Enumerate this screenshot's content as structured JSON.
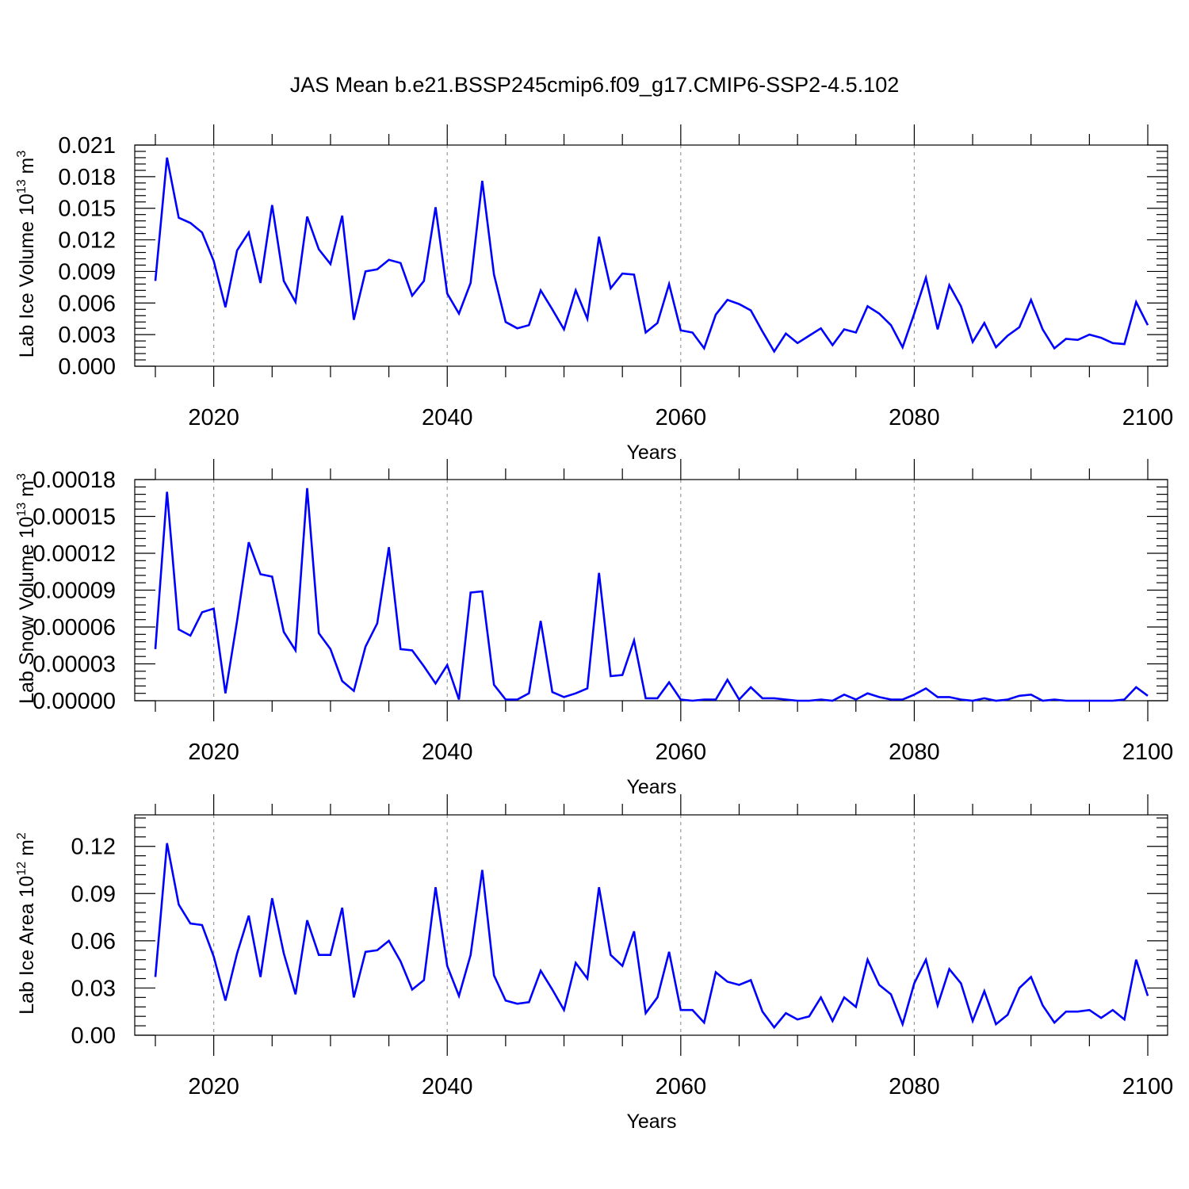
{
  "figure": {
    "title": "JAS Mean b.e21.BSSP245cmip6.f09_g17.CMIP6-SSP2-4.5.102",
    "line_color": "#0000ff"
  },
  "chart_data": [
    {
      "type": "line",
      "ylabel": "Lab Ice Volume 10",
      "ylabel_exp": "13",
      "ylabel_unit": " m",
      "ylabel_unit_exp": "3",
      "xlabel": "Years",
      "xlim": [
        2015,
        2100
      ],
      "ylim": [
        0,
        0.021
      ],
      "x_ticks": [
        2020,
        2040,
        2060,
        2080,
        2100
      ],
      "y_ticks": [
        "0.000",
        "0.003",
        "0.006",
        "0.009",
        "0.012",
        "0.015",
        "0.018",
        "0.021"
      ],
      "grid": "dashed vertical at major x ticks",
      "x": [
        2015,
        2016,
        2017,
        2018,
        2019,
        2020,
        2021,
        2022,
        2023,
        2024,
        2025,
        2026,
        2027,
        2028,
        2029,
        2030,
        2031,
        2032,
        2033,
        2034,
        2035,
        2036,
        2037,
        2038,
        2039,
        2040,
        2041,
        2042,
        2043,
        2044,
        2045,
        2046,
        2047,
        2048,
        2049,
        2050,
        2051,
        2052,
        2053,
        2054,
        2055,
        2056,
        2057,
        2058,
        2059,
        2060,
        2061,
        2062,
        2063,
        2064,
        2065,
        2066,
        2067,
        2068,
        2069,
        2070,
        2071,
        2072,
        2073,
        2074,
        2075,
        2076,
        2077,
        2078,
        2079,
        2080,
        2081,
        2082,
        2083,
        2084,
        2085,
        2086,
        2087,
        2088,
        2089,
        2090,
        2091,
        2092,
        2093,
        2094,
        2095,
        2096,
        2097,
        2098,
        2099,
        2100
      ],
      "series": [
        {
          "values": [
            0.0081,
            0.0198,
            0.0141,
            0.0136,
            0.0127,
            0.01,
            0.0056,
            0.011,
            0.0127,
            0.0079,
            0.0153,
            0.0081,
            0.0061,
            0.0142,
            0.0111,
            0.0097,
            0.0143,
            0.0044,
            0.009,
            0.0092,
            0.0101,
            0.0098,
            0.0067,
            0.0081,
            0.0151,
            0.0069,
            0.005,
            0.0079,
            0.0176,
            0.0087,
            0.0042,
            0.0036,
            0.0039,
            0.0072,
            0.0054,
            0.0035,
            0.0072,
            0.0045,
            0.0123,
            0.0074,
            0.0088,
            0.0087,
            0.0032,
            0.0041,
            0.0078,
            0.0034,
            0.0032,
            0.0017,
            0.0049,
            0.0063,
            0.0059,
            0.0053,
            0.0033,
            0.0014,
            0.0031,
            0.0022,
            0.0029,
            0.0036,
            0.002,
            0.0035,
            0.0032,
            0.0057,
            0.005,
            0.0039,
            0.0018,
            0.005,
            0.0084,
            0.0035,
            0.0077,
            0.0057,
            0.0023,
            0.0041,
            0.0018,
            0.0029,
            0.0037,
            0.0063,
            0.0035,
            0.0017,
            0.0026,
            0.0025,
            0.003,
            0.0027,
            0.0022,
            0.0021,
            0.0061,
            0.0039
          ]
        }
      ]
    },
    {
      "type": "line",
      "ylabel": "Lab Snow Volume 10",
      "ylabel_exp": "13",
      "ylabel_unit": " m",
      "ylabel_unit_exp": "3",
      "xlabel": "Years",
      "xlim": [
        2015,
        2100
      ],
      "ylim": [
        0,
        0.00018
      ],
      "x_ticks": [
        2020,
        2040,
        2060,
        2080,
        2100
      ],
      "y_ticks": [
        "0.00000",
        "0.00003",
        "0.00006",
        "0.00009",
        "0.00012",
        "0.00015",
        "0.00018"
      ],
      "grid": "dashed vertical at major x ticks",
      "x": [
        2015,
        2016,
        2017,
        2018,
        2019,
        2020,
        2021,
        2022,
        2023,
        2024,
        2025,
        2026,
        2027,
        2028,
        2029,
        2030,
        2031,
        2032,
        2033,
        2034,
        2035,
        2036,
        2037,
        2038,
        2039,
        2040,
        2041,
        2042,
        2043,
        2044,
        2045,
        2046,
        2047,
        2048,
        2049,
        2050,
        2051,
        2052,
        2053,
        2054,
        2055,
        2056,
        2057,
        2058,
        2059,
        2060,
        2061,
        2062,
        2063,
        2064,
        2065,
        2066,
        2067,
        2068,
        2069,
        2070,
        2071,
        2072,
        2073,
        2074,
        2075,
        2076,
        2077,
        2078,
        2079,
        2080,
        2081,
        2082,
        2083,
        2084,
        2085,
        2086,
        2087,
        2088,
        2089,
        2090,
        2091,
        2092,
        2093,
        2094,
        2095,
        2096,
        2097,
        2098,
        2099,
        2100
      ],
      "series": [
        {
          "values": [
            4.2e-05,
            0.00017,
            5.8e-05,
            5.3e-05,
            7.2e-05,
            7.5e-05,
            6e-06,
            6.5e-05,
            0.000129,
            0.000103,
            0.000101,
            5.6e-05,
            4.1e-05,
            0.000173,
            5.5e-05,
            4.2e-05,
            1.6e-05,
            8e-06,
            4.4e-05,
            6.3e-05,
            0.000125,
            4.2e-05,
            4.1e-05,
            2.8e-05,
            1.4e-05,
            2.9e-05,
            1e-06,
            8.8e-05,
            8.9e-05,
            1.3e-05,
            1e-06,
            1e-06,
            6e-06,
            6.5e-05,
            7e-06,
            3e-06,
            6e-06,
            1e-05,
            0.000104,
            2e-05,
            2.1e-05,
            4.9e-05,
            2e-06,
            2e-06,
            1.5e-05,
            1e-06,
            0.0,
            1e-06,
            1e-06,
            1.7e-05,
            1e-06,
            1.1e-05,
            2e-06,
            2e-06,
            1e-06,
            0.0,
            0.0,
            1e-06,
            0.0,
            5e-06,
            1e-06,
            6e-06,
            3e-06,
            1e-06,
            1e-06,
            5e-06,
            1e-05,
            3e-06,
            3e-06,
            1e-06,
            0.0,
            2e-06,
            0.0,
            1e-06,
            4e-06,
            5e-06,
            0.0,
            1e-06,
            0.0,
            0.0,
            0.0,
            0.0,
            0.0,
            1e-06,
            1.1e-05,
            4e-06
          ]
        }
      ]
    },
    {
      "type": "line",
      "ylabel": "Lab Ice Area 10",
      "ylabel_exp": "12",
      "ylabel_unit": " m",
      "ylabel_unit_exp": "2",
      "xlabel": "Years",
      "xlim": [
        2015,
        2100
      ],
      "ylim": [
        0,
        0.14
      ],
      "x_ticks": [
        2020,
        2040,
        2060,
        2080,
        2100
      ],
      "y_ticks": [
        "0.00",
        "0.03",
        "0.06",
        "0.09",
        "0.12"
      ],
      "grid": "dashed vertical at major x ticks",
      "x": [
        2015,
        2016,
        2017,
        2018,
        2019,
        2020,
        2021,
        2022,
        2023,
        2024,
        2025,
        2026,
        2027,
        2028,
        2029,
        2030,
        2031,
        2032,
        2033,
        2034,
        2035,
        2036,
        2037,
        2038,
        2039,
        2040,
        2041,
        2042,
        2043,
        2044,
        2045,
        2046,
        2047,
        2048,
        2049,
        2050,
        2051,
        2052,
        2053,
        2054,
        2055,
        2056,
        2057,
        2058,
        2059,
        2060,
        2061,
        2062,
        2063,
        2064,
        2065,
        2066,
        2067,
        2068,
        2069,
        2070,
        2071,
        2072,
        2073,
        2074,
        2075,
        2076,
        2077,
        2078,
        2079,
        2080,
        2081,
        2082,
        2083,
        2084,
        2085,
        2086,
        2087,
        2088,
        2089,
        2090,
        2091,
        2092,
        2093,
        2094,
        2095,
        2096,
        2097,
        2098,
        2099,
        2100
      ],
      "series": [
        {
          "values": [
            0.037,
            0.122,
            0.083,
            0.071,
            0.07,
            0.05,
            0.022,
            0.052,
            0.076,
            0.037,
            0.087,
            0.052,
            0.026,
            0.073,
            0.051,
            0.051,
            0.081,
            0.024,
            0.053,
            0.054,
            0.06,
            0.047,
            0.029,
            0.035,
            0.094,
            0.044,
            0.025,
            0.051,
            0.105,
            0.038,
            0.022,
            0.02,
            0.021,
            0.041,
            0.029,
            0.016,
            0.046,
            0.036,
            0.094,
            0.051,
            0.044,
            0.066,
            0.014,
            0.024,
            0.053,
            0.016,
            0.016,
            0.008,
            0.04,
            0.034,
            0.032,
            0.035,
            0.015,
            0.005,
            0.014,
            0.01,
            0.012,
            0.024,
            0.009,
            0.024,
            0.018,
            0.048,
            0.032,
            0.026,
            0.007,
            0.033,
            0.048,
            0.019,
            0.042,
            0.033,
            0.009,
            0.028,
            0.007,
            0.013,
            0.03,
            0.037,
            0.019,
            0.008,
            0.015,
            0.015,
            0.016,
            0.011,
            0.016,
            0.01,
            0.048,
            0.025
          ]
        }
      ]
    }
  ]
}
